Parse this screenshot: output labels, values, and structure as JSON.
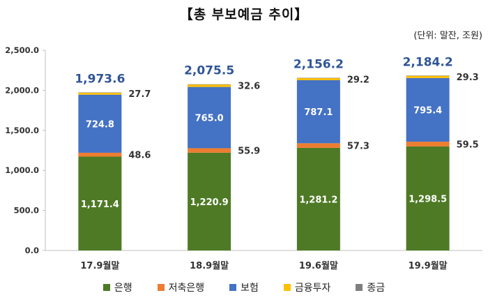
{
  "title": "【총 부보예금 추이】",
  "unit_note": "(단위: 말잔, 조원)",
  "chart_data": {
    "type": "bar",
    "stacked": true,
    "categories": [
      "17.9월말",
      "18.9월말",
      "19.6월말",
      "19.9월말"
    ],
    "ylim": [
      0,
      2500
    ],
    "yticks": [
      "0.0",
      "500.0",
      "1,000.0",
      "1,500.0",
      "2,000.0",
      "2,500.0"
    ],
    "grid": false,
    "legend_position": "bottom",
    "series": [
      {
        "name": "은행",
        "color": "#4e7a25",
        "values": [
          1171.4,
          1220.9,
          1281.2,
          1298.5
        ],
        "labels": [
          "1,171.4",
          "1,220.9",
          "1,281.2",
          "1,298.5"
        ]
      },
      {
        "name": "저축은행",
        "color": "#ed7d31",
        "values": [
          48.6,
          55.9,
          57.3,
          59.5
        ],
        "labels": [
          "48.6",
          "55.9",
          "57.3",
          "59.5"
        ]
      },
      {
        "name": "보험",
        "color": "#4472c4",
        "values": [
          724.8,
          765.0,
          787.1,
          795.4
        ],
        "labels": [
          "724.8",
          "765.0",
          "787.1",
          "795.4"
        ]
      },
      {
        "name": "금융투자",
        "color": "#ffc000",
        "values": [
          27.7,
          32.6,
          29.2,
          29.3
        ],
        "labels": [
          "27.7",
          "32.6",
          "29.2",
          "29.3"
        ]
      },
      {
        "name": "종금",
        "color": "#7f7f7f",
        "values": [
          0.5,
          0.5,
          0.5,
          0.5
        ],
        "labels": []
      }
    ],
    "totals": [
      1973.6,
      2075.5,
      2156.2,
      2184.2
    ],
    "total_labels": [
      "1,973.6",
      "2,075.5",
      "2,156.2",
      "2,184.2"
    ],
    "total_color": "#2f5597"
  }
}
